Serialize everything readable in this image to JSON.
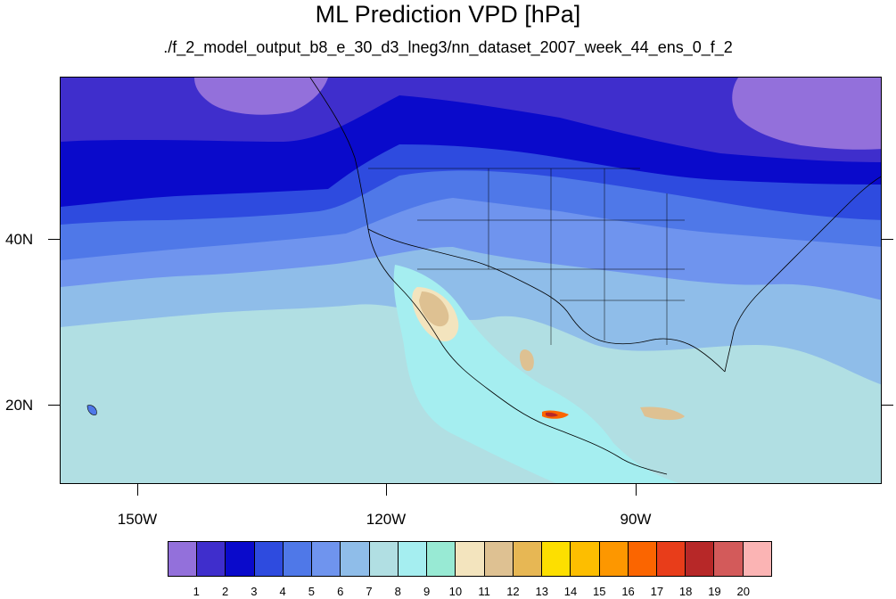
{
  "title": "ML Prediction VPD [hPa]",
  "subtitle": "./f_2_model_output_b8_e_30_d3_lneg3/nn_dataset_2007_week_44_ens_0_f_2",
  "map": {
    "projection": "cylindrical-equidistant",
    "lon_range": [
      -159.5,
      -60.5
    ],
    "lat_range": [
      10,
      59
    ],
    "lat_labels": [
      "40N",
      "20N"
    ],
    "lon_labels": [
      "150W",
      "120W",
      "90W"
    ],
    "coastline_color": "#000000"
  },
  "colorbar": {
    "levels": [
      "1",
      "2",
      "3",
      "4",
      "5",
      "6",
      "7",
      "8",
      "9",
      "10",
      "11",
      "12",
      "13",
      "14",
      "15",
      "16",
      "17",
      "18",
      "19",
      "20"
    ],
    "colors": [
      "#9370DB",
      "#3F2ECC",
      "#0A0ACB",
      "#2E4BDF",
      "#4F78E8",
      "#6F94EE",
      "#8FBDE9",
      "#B1DFE3",
      "#A5EEF0",
      "#98EAD4",
      "#F3E4BE",
      "#DEC192",
      "#E7B754",
      "#FDDF00",
      "#FDBE00",
      "#FD9700",
      "#FB6500",
      "#E83D1A",
      "#B72828",
      "#D35A5A",
      "#FBB4B4"
    ]
  }
}
